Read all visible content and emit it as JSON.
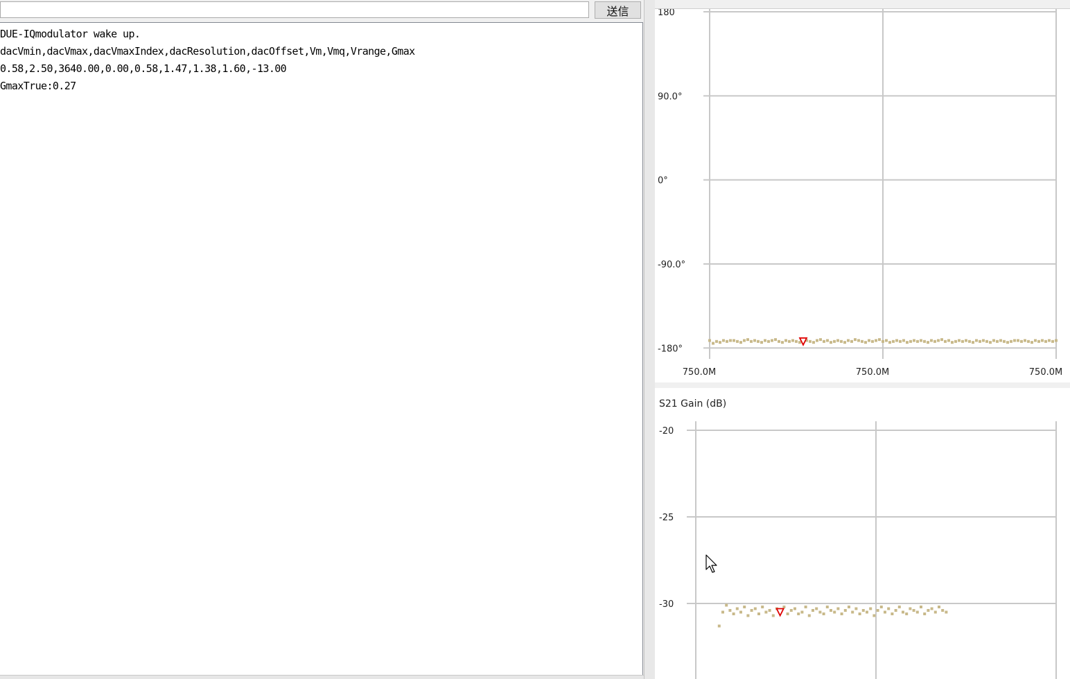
{
  "send_bar": {
    "input_value": "",
    "send_label": "送信"
  },
  "console": {
    "lines": [
      "DUE-IQmodulator wake up.",
      "dacVmin,dacVmax,dacVmaxIndex,dacResolution,dacOffset,Vm,Vmq,Vrange,Gmax",
      "0.58,2.50,3640.00,0.00,0.58,1.47,1.38,1.60,-13.00",
      "GmaxTrue:0.27"
    ]
  },
  "colors": {
    "trace": "#c8b98a",
    "marker": "#e00000",
    "grid": "#c8c8c8"
  },
  "chart_data": [
    {
      "type": "scatter",
      "name": "phase",
      "title": "",
      "y_ticks": [
        {
          "value": 180,
          "label": "180"
        },
        {
          "value": 90,
          "label": "90.0°"
        },
        {
          "value": 0,
          "label": "0°"
        },
        {
          "value": -90,
          "label": "-90.0°"
        },
        {
          "value": -180,
          "label": "-180°"
        }
      ],
      "x_tick_labels": [
        "750.0M",
        "750.0M",
        "750.0M"
      ],
      "ylim": [
        -185,
        180
      ],
      "xlim": [
        0,
        1
      ],
      "grid": true,
      "marker": {
        "x": 0.27,
        "y": -173
      },
      "x": [
        0.0,
        0.01,
        0.02,
        0.03,
        0.04,
        0.05,
        0.06,
        0.07,
        0.08,
        0.09,
        0.1,
        0.11,
        0.12,
        0.13,
        0.14,
        0.15,
        0.16,
        0.17,
        0.18,
        0.19,
        0.2,
        0.21,
        0.22,
        0.23,
        0.24,
        0.25,
        0.26,
        0.27,
        0.28,
        0.29,
        0.3,
        0.31,
        0.32,
        0.33,
        0.34,
        0.35,
        0.36,
        0.37,
        0.38,
        0.39,
        0.4,
        0.41,
        0.42,
        0.43,
        0.44,
        0.45,
        0.46,
        0.47,
        0.48,
        0.49,
        0.5,
        0.51,
        0.52,
        0.53,
        0.54,
        0.55,
        0.56,
        0.57,
        0.58,
        0.59,
        0.6,
        0.61,
        0.62,
        0.63,
        0.64,
        0.65,
        0.66,
        0.67,
        0.68,
        0.69,
        0.7,
        0.71,
        0.72,
        0.73,
        0.74,
        0.75,
        0.76,
        0.77,
        0.78,
        0.79,
        0.8,
        0.81,
        0.82,
        0.83,
        0.84,
        0.85,
        0.86,
        0.87,
        0.88,
        0.89,
        0.9,
        0.91,
        0.92,
        0.93,
        0.94,
        0.95,
        0.96,
        0.97,
        0.98,
        0.99,
        1.0
      ],
      "y": [
        -172,
        -175,
        -173,
        -174,
        -172,
        -173,
        -172,
        -172,
        -173,
        -174,
        -172,
        -171,
        -173,
        -172,
        -173,
        -174,
        -172,
        -173,
        -172,
        -171,
        -173,
        -174,
        -172,
        -173,
        -172,
        -173,
        -174,
        -173,
        -172,
        -173,
        -174,
        -172,
        -171,
        -173,
        -172,
        -174,
        -173,
        -172,
        -173,
        -174,
        -172,
        -173,
        -171,
        -172,
        -173,
        -174,
        -172,
        -173,
        -172,
        -171,
        -173,
        -172,
        -174,
        -173,
        -172,
        -173,
        -172,
        -174,
        -173,
        -172,
        -173,
        -172,
        -173,
        -174,
        -172,
        -173,
        -172,
        -171,
        -173,
        -172,
        -174,
        -173,
        -172,
        -173,
        -172,
        -173,
        -174,
        -172,
        -173,
        -172,
        -173,
        -174,
        -172,
        -173,
        -172,
        -173,
        -174,
        -173,
        -172,
        -172,
        -173,
        -172,
        -173,
        -174,
        -172,
        -173,
        -172,
        -173,
        -172,
        -173,
        -172
      ]
    },
    {
      "type": "scatter",
      "name": "gain",
      "title": "S21 Gain (dB)",
      "y_ticks": [
        {
          "value": -20,
          "label": "-20"
        },
        {
          "value": -25,
          "label": "-25"
        },
        {
          "value": -30,
          "label": "-30"
        }
      ],
      "ylim": [
        -34.2,
        -20
      ],
      "xlim": [
        0,
        1
      ],
      "grid": true,
      "marker": {
        "x": 0.234,
        "y": -30.5
      },
      "x": [
        0.065,
        0.075,
        0.085,
        0.095,
        0.105,
        0.115,
        0.125,
        0.135,
        0.145,
        0.155,
        0.165,
        0.175,
        0.185,
        0.195,
        0.205,
        0.215,
        0.225,
        0.235,
        0.245,
        0.255,
        0.265,
        0.275,
        0.285,
        0.295,
        0.305,
        0.315,
        0.325,
        0.335,
        0.345,
        0.355,
        0.365,
        0.375,
        0.385,
        0.395,
        0.405,
        0.415,
        0.425,
        0.435,
        0.445,
        0.455,
        0.465,
        0.475,
        0.485,
        0.495,
        0.505,
        0.515,
        0.525,
        0.535,
        0.545,
        0.555,
        0.565,
        0.575,
        0.585,
        0.595,
        0.605,
        0.615,
        0.625,
        0.635,
        0.645,
        0.655,
        0.665,
        0.675,
        0.685,
        0.695
      ],
      "y": [
        -31.3,
        -30.5,
        -30.1,
        -30.4,
        -30.6,
        -30.3,
        -30.5,
        -30.2,
        -30.7,
        -30.4,
        -30.3,
        -30.6,
        -30.2,
        -30.5,
        -30.4,
        -30.7,
        -30.3,
        -30.5,
        -30.2,
        -30.6,
        -30.4,
        -30.3,
        -30.6,
        -30.5,
        -30.2,
        -30.7,
        -30.4,
        -30.3,
        -30.5,
        -30.6,
        -30.2,
        -30.4,
        -30.5,
        -30.3,
        -30.6,
        -30.4,
        -30.2,
        -30.5,
        -30.3,
        -30.6,
        -30.4,
        -30.5,
        -30.3,
        -30.7,
        -30.4,
        -30.2,
        -30.5,
        -30.3,
        -30.6,
        -30.4,
        -30.2,
        -30.5,
        -30.6,
        -30.3,
        -30.4,
        -30.5,
        -30.2,
        -30.6,
        -30.4,
        -30.3,
        -30.5,
        -30.2,
        -30.4,
        -30.5
      ]
    }
  ]
}
